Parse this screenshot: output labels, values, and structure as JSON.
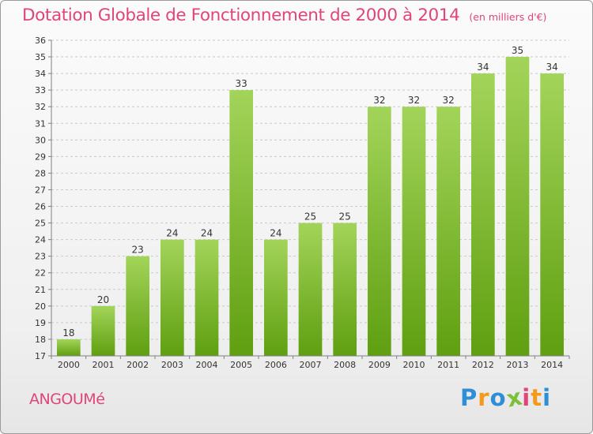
{
  "chart": {
    "title": "Dotation Globale de Fonctionnement de 2000 à 2014",
    "unit": "(en milliers d'€)"
  },
  "city": "ANGOUMé",
  "logo": {
    "text": "Proxiti",
    "letters": [
      {
        "char": "P",
        "color": "#2f8fd6"
      },
      {
        "char": "r",
        "color": "#f39a1d"
      },
      {
        "char": "o",
        "color": "#2f8fd6"
      },
      {
        "char": "x",
        "color": "#7cc03a"
      },
      {
        "char": "i",
        "color": "#e0457a"
      },
      {
        "char": "t",
        "color": "#f39a1d"
      },
      {
        "char": "i",
        "color": "#2f8fd6"
      }
    ]
  },
  "colors": {
    "bar_top": "#a3d45a",
    "bar_bottom": "#5f9f10",
    "axis": "#808080",
    "grid": "#c9c9c9",
    "text": "#333333",
    "accent": "#e0457a"
  },
  "chart_data": {
    "type": "bar",
    "title": "Dotation Globale de Fonctionnement de 2000 à 2014",
    "subtitle": "(en milliers d'€)",
    "categories": [
      "2000",
      "2001",
      "2002",
      "2003",
      "2004",
      "2005",
      "2006",
      "2007",
      "2008",
      "2009",
      "2010",
      "2011",
      "2012",
      "2013",
      "2014"
    ],
    "values": [
      18,
      20,
      23,
      24,
      24,
      33,
      24,
      25,
      25,
      32,
      32,
      32,
      34,
      35,
      34
    ],
    "data_labels": [
      "18",
      "20",
      "23",
      "24",
      "24",
      "33",
      "24",
      "25",
      "25",
      "32",
      "32",
      "32",
      "34",
      "35",
      "34"
    ],
    "ylim": [
      17,
      36
    ],
    "yticks": [
      "17",
      "18",
      "19",
      "20",
      "21",
      "22",
      "23",
      "24",
      "25",
      "26",
      "27",
      "28",
      "29",
      "30",
      "31",
      "32",
      "33",
      "34",
      "35",
      "36"
    ],
    "grid": true,
    "grid_style": "dashed horizontal",
    "legend": "none"
  }
}
